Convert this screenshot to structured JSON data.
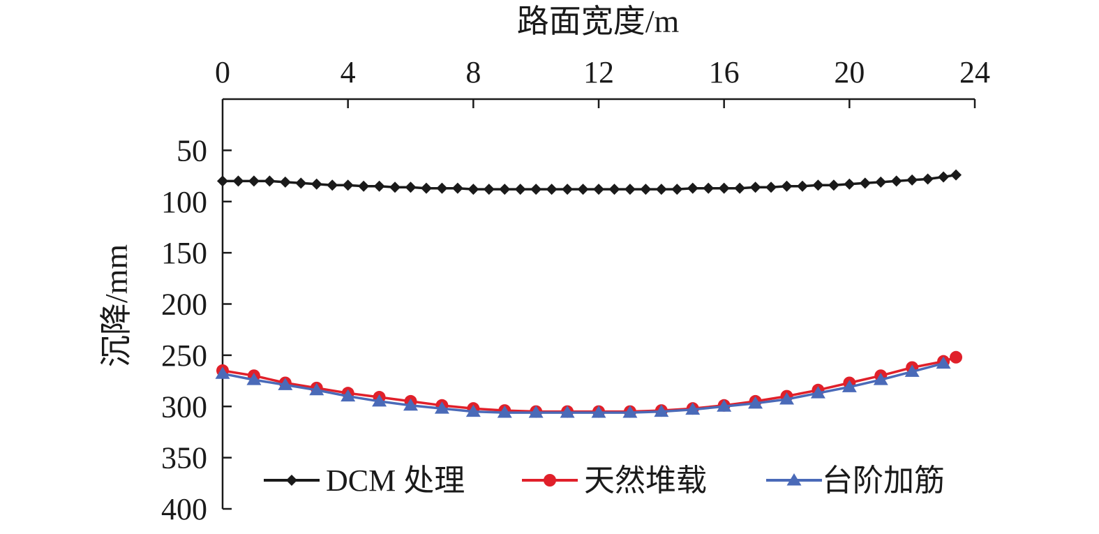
{
  "chart_data": {
    "type": "line",
    "xlabel": "路面宽度/m",
    "ylabel": "沉降/mm",
    "xlim": [
      0,
      24
    ],
    "ylim": [
      0,
      400
    ],
    "y_inverted": true,
    "x_axis_position": "top",
    "x_ticks": [
      0,
      4,
      8,
      12,
      16,
      20,
      24
    ],
    "y_ticks": [
      50,
      100,
      150,
      200,
      250,
      300,
      350,
      400
    ],
    "grid": false,
    "legend_position": "bottom",
    "series": [
      {
        "name": "DCM 处理",
        "color": "#1a1a1a",
        "marker": "diamond",
        "x": [
          0,
          0.5,
          1,
          1.5,
          2,
          2.5,
          3,
          3.5,
          4,
          4.5,
          5,
          5.5,
          6,
          6.5,
          7,
          7.5,
          8,
          8.5,
          9,
          9.5,
          10,
          10.5,
          11,
          11.5,
          12,
          12.5,
          13,
          13.5,
          14,
          14.5,
          15,
          15.5,
          16,
          16.5,
          17,
          17.5,
          18,
          18.5,
          19,
          19.5,
          20,
          20.5,
          21,
          21.5,
          22,
          22.5,
          23,
          23.4
        ],
        "values": [
          80,
          80,
          80,
          80,
          81,
          82,
          83,
          84,
          84,
          85,
          85,
          86,
          86,
          87,
          87,
          87,
          88,
          88,
          88,
          88,
          88,
          88,
          88,
          88,
          88,
          88,
          88,
          88,
          88,
          88,
          87,
          87,
          87,
          87,
          86,
          86,
          85,
          85,
          84,
          84,
          83,
          82,
          81,
          80,
          79,
          78,
          76,
          74
        ]
      },
      {
        "name": "天然堆载",
        "color": "#e0202a",
        "marker": "circle",
        "x": [
          0,
          1,
          2,
          3,
          4,
          5,
          6,
          7,
          8,
          9,
          10,
          11,
          12,
          13,
          14,
          15,
          16,
          17,
          18,
          19,
          20,
          21,
          22,
          23,
          23.4
        ],
        "values": [
          265,
          270,
          277,
          282,
          287,
          291,
          295,
          299,
          302,
          304,
          305,
          305,
          305,
          305,
          304,
          302,
          299,
          295,
          290,
          284,
          277,
          270,
          262,
          256,
          252
        ]
      },
      {
        "name": "台阶加筋",
        "color": "#4a6ab8",
        "marker": "triangle",
        "x": [
          0,
          1,
          2,
          3,
          4,
          5,
          6,
          7,
          8,
          9,
          10,
          11,
          12,
          13,
          14,
          15,
          16,
          17,
          18,
          19,
          20,
          21,
          22,
          23
        ],
        "values": [
          268,
          274,
          279,
          284,
          290,
          295,
          299,
          302,
          305,
          306,
          306,
          306,
          306,
          306,
          305,
          303,
          300,
          297,
          293,
          287,
          281,
          274,
          266,
          258
        ]
      }
    ]
  }
}
